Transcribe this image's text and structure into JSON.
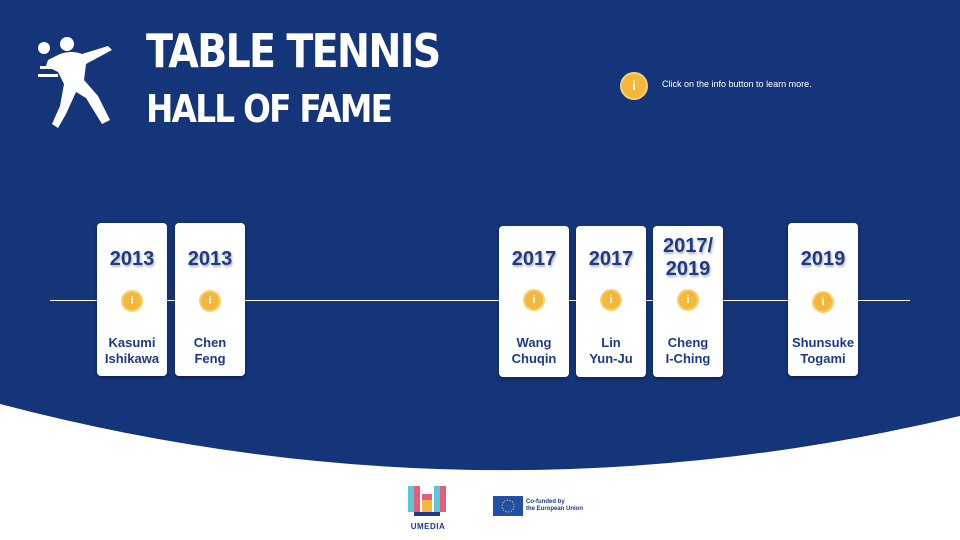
{
  "header": {
    "title_line1": "TABLE TENNIS",
    "title_line2": "HALL OF FAME",
    "info_hint": "Click on the info button to learn more.",
    "info_icon_label": "i"
  },
  "cards": [
    {
      "year": "2013",
      "name": "Kasumi Ishikawa",
      "name_line1": "Kasumi",
      "name_line2": "Ishikawa",
      "info_label": "i"
    },
    {
      "year": "2013",
      "name": "Chen Feng",
      "name_line1": "Chen",
      "name_line2": "Feng",
      "info_label": "i"
    },
    {
      "year": "2017",
      "name": "Wang Chuqin",
      "name_line1": "Wang",
      "name_line2": "Chuqin",
      "info_label": "i"
    },
    {
      "year": "2017",
      "name": "Lin Yun-Ju",
      "name_line1": "Lin",
      "name_line2": "Yun-Ju",
      "info_label": "i"
    },
    {
      "year_line1": "2017/",
      "year_line2": "2019",
      "name": "Cheng I-Ching",
      "name_line1": "Cheng",
      "name_line2": "I-Ching",
      "info_label": "i"
    },
    {
      "year": "2019",
      "name": "Shunsuke Togami",
      "name_line1": "Shunsuke",
      "name_line2": "Togami",
      "info_label": "i"
    }
  ],
  "footer": {
    "logo_text": "UMEDIA",
    "eu_line1": "Co-funded by",
    "eu_line2": "the European Union"
  },
  "colors": {
    "background": "#15357a",
    "accent": "#f5b73b",
    "text_dark": "#1d3a8a"
  }
}
